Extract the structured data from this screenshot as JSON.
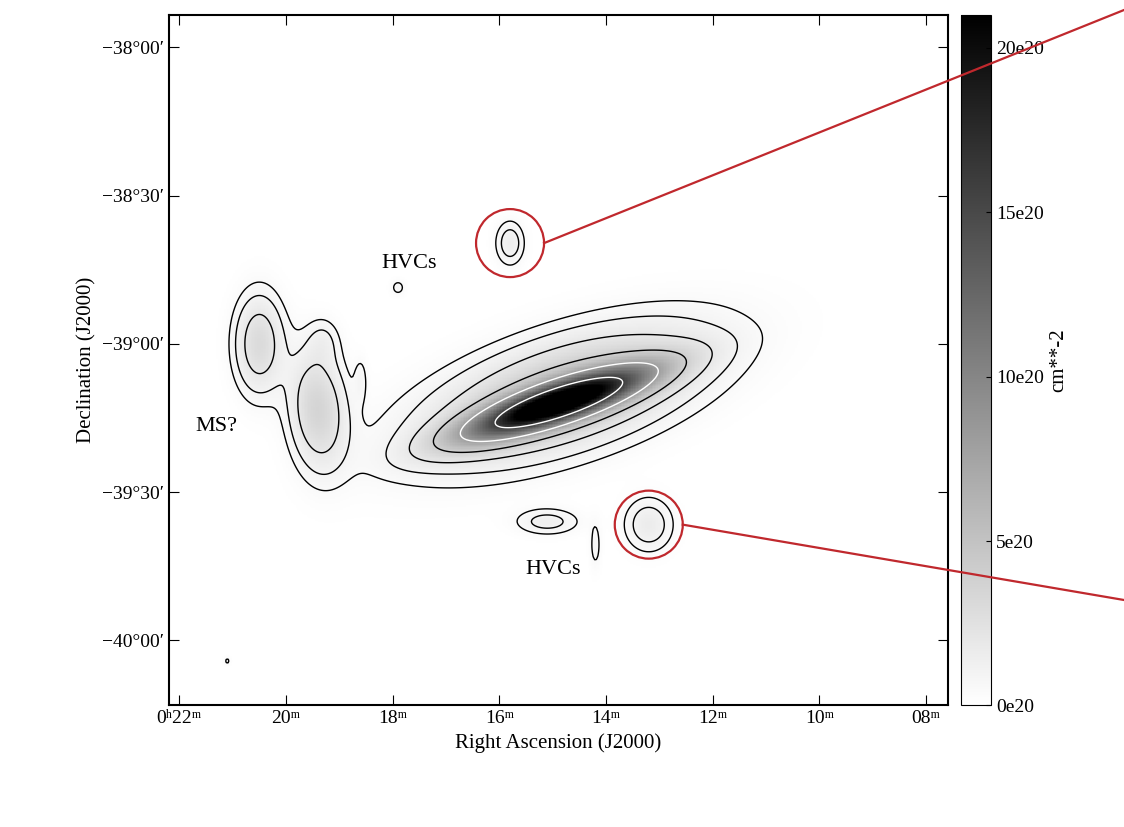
{
  "chart_data": {
    "type": "contour",
    "xlabel": "Right Ascension (J2000)",
    "ylabel": "Declination (J2000)",
    "colorbar_label": "cm**-2",
    "xlim": [
      22.2,
      7.6
    ],
    "xticks": [
      {
        "value": 22,
        "label": "0ʰ22ᵐ"
      },
      {
        "value": 20,
        "label": "20ᵐ"
      },
      {
        "value": 18,
        "label": "18ᵐ"
      },
      {
        "value": 16,
        "label": "16ᵐ"
      },
      {
        "value": 14,
        "label": "14ᵐ"
      },
      {
        "value": 12,
        "label": "12ᵐ"
      },
      {
        "value": 10,
        "label": "10ᵐ"
      },
      {
        "value": 8,
        "label": "08ᵐ"
      }
    ],
    "ylim": [
      -40.22,
      -37.89
    ],
    "yticks": [
      {
        "value": -38.0,
        "label": "−38°00′"
      },
      {
        "value": -38.5,
        "label": "−38°30′"
      },
      {
        "value": -39.0,
        "label": "−39°00′"
      },
      {
        "value": -39.5,
        "label": "−39°30′"
      },
      {
        "value": -40.0,
        "label": "−40°00′"
      }
    ],
    "colorbar_range": [
      0,
      2.1e+21
    ],
    "colorbar_ticks": [
      {
        "value": 0,
        "label": "0e20"
      },
      {
        "value": 5e+20,
        "label": "5e20"
      },
      {
        "value": 1e+21,
        "label": "10e20"
      },
      {
        "value": 1.5e+21,
        "label": "15e20"
      },
      {
        "value": 2e+21,
        "label": "20e20"
      }
    ],
    "contour_levels": [
      5e+19,
      1e+20,
      2e+20,
      4e+20,
      8e+20,
      1.6e+21
    ],
    "components": [
      {
        "ra": 14.9,
        "dec": -39.2,
        "width_ra": 1.1,
        "width_dec": 0.045,
        "tilt": -0.057,
        "peak": 2.2e+21
      },
      {
        "ra": 14.8,
        "dec": -39.17,
        "width_ra": 1.7,
        "width_dec": 0.12,
        "tilt": -0.05,
        "peak": 5e+20
      },
      {
        "ra": 20.5,
        "dec": -39.0,
        "width_ra": 0.3,
        "width_dec": 0.11,
        "tilt": 0.0,
        "peak": 3e+20
      },
      {
        "ra": 19.4,
        "dec": -39.22,
        "width_ra": 0.35,
        "width_dec": 0.13,
        "tilt": 0.05,
        "peak": 3.5e+20
      },
      {
        "ra": 19.3,
        "dec": -38.99,
        "width_ra": 0.2,
        "width_dec": 0.05,
        "tilt": 0.0,
        "peak": 8e+19
      },
      {
        "ra": 18.6,
        "dec": -39.12,
        "width_ra": 0.08,
        "width_dec": 0.05,
        "tilt": 0.0,
        "peak": 7e+19
      },
      {
        "ra": 15.8,
        "dec": -38.66,
        "width_ra": 0.18,
        "width_dec": 0.05,
        "tilt": 0.0,
        "peak": 1.5e+20
      },
      {
        "ra": 17.9,
        "dec": -38.81,
        "width_ra": 0.1,
        "width_dec": 0.02,
        "tilt": 0.0,
        "peak": 7e+19
      },
      {
        "ra": 15.1,
        "dec": -39.6,
        "width_ra": 0.4,
        "width_dec": 0.03,
        "tilt": 0.0,
        "peak": 1.3e+20
      },
      {
        "ra": 13.2,
        "dec": -39.61,
        "width_ra": 0.3,
        "width_dec": 0.06,
        "tilt": 0.0,
        "peak": 1.6e+20
      },
      {
        "ra": 14.2,
        "dec": -39.68,
        "width_ra": 0.08,
        "width_dec": 0.06,
        "tilt": 0.0,
        "peak": 7e+19
      },
      {
        "ra": 21.1,
        "dec": -40.07,
        "width_ra": 0.05,
        "width_dec": 0.012,
        "tilt": 0.0,
        "peak": 6e+19
      }
    ],
    "annotations": [
      {
        "text": "HVCs",
        "ra": 17.7,
        "dec": -38.73
      },
      {
        "text": "HVCs",
        "ra": 15.0,
        "dec": -39.76
      },
      {
        "text": "MS?",
        "ra": 21.3,
        "dec": -39.28
      }
    ],
    "highlights": [
      {
        "ra": 15.8,
        "dec": -38.66
      },
      {
        "ra": 13.2,
        "dec": -39.61
      }
    ]
  }
}
